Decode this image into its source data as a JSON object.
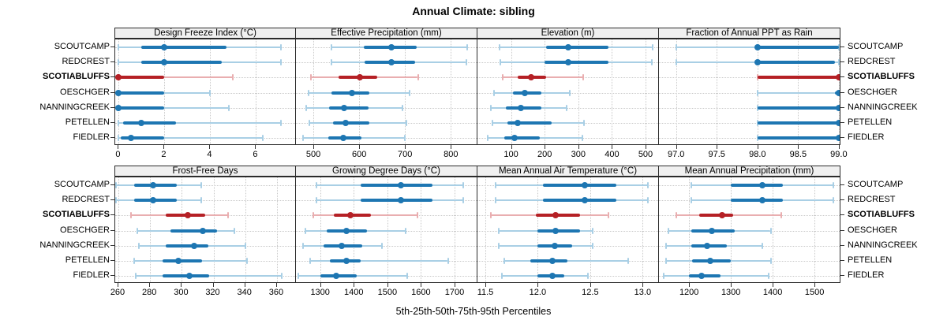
{
  "title": "Annual Climate: sibling",
  "caption": "5th-25th-50th-75th-95th Percentiles",
  "sites": [
    "SCOUTCAMP",
    "REDCREST",
    "SCOTIABLUFFS",
    "OESCHGER",
    "NANNINGCREEK",
    "PETELLEN",
    "FIEDLER"
  ],
  "highlight_site": "SCOTIABLUFFS",
  "colors": {
    "blue_dark": "#1d76b2",
    "blue_light": "#a9cfe5",
    "red_dark": "#b52025",
    "red_light": "#e9aeb0",
    "grid": "#c9c9c9",
    "strip_bg": "#f0f0f0",
    "border": "#2b2b2b"
  },
  "chart_data": [
    {
      "type": "dotplot-intervals",
      "title": "Design Freeze Index (°C)",
      "slug": "design-freeze-index",
      "xlim": [
        -0.15,
        7.78
      ],
      "ticks": [
        0,
        2,
        4,
        6
      ],
      "tick_labels": [
        "0",
        "2",
        "4",
        "6"
      ],
      "percentiles": [
        "5th",
        "25th",
        "50th",
        "75th",
        "95th"
      ],
      "series": [
        {
          "name": "SCOUTCAMP",
          "values": [
            0,
            1,
            2,
            4.7,
            7.1
          ]
        },
        {
          "name": "REDCREST",
          "values": [
            0,
            1,
            2,
            4.5,
            7.1
          ]
        },
        {
          "name": "SCOTIABLUFFS",
          "values": [
            0,
            0,
            0,
            2,
            5
          ]
        },
        {
          "name": "OESCHGER",
          "values": [
            0,
            0,
            0,
            2,
            4
          ]
        },
        {
          "name": "NANNINGCREEK",
          "values": [
            0,
            0,
            0,
            2,
            4.8
          ]
        },
        {
          "name": "PETELLEN",
          "values": [
            0,
            0.2,
            1,
            2.5,
            7.1
          ]
        },
        {
          "name": "FIEDLER",
          "values": [
            0,
            0.1,
            0.55,
            2,
            6.3
          ]
        }
      ]
    },
    {
      "type": "dotplot-intervals",
      "title": "Effective Precipitation (mm)",
      "slug": "effective-precipitation",
      "xlim": [
        462,
        858
      ],
      "ticks": [
        500,
        600,
        700,
        800
      ],
      "tick_labels": [
        "500",
        "600",
        "700",
        "800"
      ],
      "percentiles": [
        "5th",
        "25th",
        "50th",
        "75th",
        "95th"
      ],
      "series": [
        {
          "name": "SCOUTCAMP",
          "values": [
            540,
            610,
            670,
            725,
            835
          ]
        },
        {
          "name": "REDCREST",
          "values": [
            540,
            612,
            670,
            722,
            833
          ]
        },
        {
          "name": "SCOTIABLUFFS",
          "values": [
            495,
            555,
            602,
            640,
            728
          ]
        },
        {
          "name": "OESCHGER",
          "values": [
            490,
            540,
            585,
            622,
            710
          ]
        },
        {
          "name": "NANNINGCREEK",
          "values": [
            485,
            535,
            567,
            620,
            695
          ]
        },
        {
          "name": "PETELLEN",
          "values": [
            492,
            542,
            570,
            622,
            703
          ]
        },
        {
          "name": "FIEDLER",
          "values": [
            478,
            532,
            565,
            605,
            700
          ]
        }
      ]
    },
    {
      "type": "dotplot-intervals",
      "title": "Elevation (m)",
      "slug": "elevation",
      "xlim": [
        0,
        540
      ],
      "ticks": [
        100,
        200,
        300,
        400,
        500
      ],
      "tick_labels": [
        "100",
        "200",
        "300",
        "400",
        "500"
      ],
      "percentiles": [
        "5th",
        "25th",
        "50th",
        "75th",
        "95th"
      ],
      "series": [
        {
          "name": "SCOUTCAMP",
          "values": [
            65,
            205,
            270,
            390,
            520
          ]
        },
        {
          "name": "REDCREST",
          "values": [
            68,
            200,
            270,
            390,
            518
          ]
        },
        {
          "name": "SCOTIABLUFFS",
          "values": [
            75,
            120,
            160,
            205,
            315
          ]
        },
        {
          "name": "OESCHGER",
          "values": [
            50,
            105,
            140,
            190,
            275
          ]
        },
        {
          "name": "NANNINGCREEK",
          "values": [
            40,
            85,
            128,
            190,
            265
          ]
        },
        {
          "name": "PETELLEN",
          "values": [
            45,
            90,
            120,
            220,
            318
          ]
        },
        {
          "name": "FIEDLER",
          "values": [
            30,
            80,
            110,
            185,
            312
          ]
        }
      ]
    },
    {
      "type": "dotplot-intervals",
      "title": "Fraction of Annual PPT as Rain",
      "slug": "fraction-annual-ppt-rain",
      "xlim": [
        96.79,
        99.02
      ],
      "ticks": [
        97.0,
        97.5,
        98.0,
        98.5,
        99.0
      ],
      "tick_labels": [
        "97.0",
        "97.5",
        "98.0",
        "98.5",
        "99.0"
      ],
      "percentiles": [
        "5th",
        "25th",
        "50th",
        "75th",
        "95th"
      ],
      "series": [
        {
          "name": "SCOUTCAMP",
          "values": [
            97.0,
            98.0,
            98.0,
            99.0,
            99.0
          ]
        },
        {
          "name": "REDCREST",
          "values": [
            97.0,
            98.0,
            98.0,
            98.95,
            99.0
          ]
        },
        {
          "name": "SCOTIABLUFFS",
          "values": [
            98.0,
            98.0,
            99.0,
            99.0,
            99.0
          ]
        },
        {
          "name": "OESCHGER",
          "values": [
            98.0,
            98.95,
            99.0,
            99.0,
            99.0
          ]
        },
        {
          "name": "NANNINGCREEK",
          "values": [
            98.0,
            98.0,
            99.0,
            99.0,
            99.0
          ]
        },
        {
          "name": "PETELLEN",
          "values": [
            98.0,
            98.0,
            99.0,
            99.0,
            99.0
          ]
        },
        {
          "name": "FIEDLER",
          "values": [
            98.0,
            98.0,
            99.0,
            99.0,
            99.0
          ]
        }
      ]
    },
    {
      "type": "dotplot-intervals",
      "title": "Frost-Free Days",
      "slug": "frost-free-days",
      "xlim": [
        258,
        372.5
      ],
      "ticks": [
        260,
        280,
        300,
        320,
        340,
        360
      ],
      "tick_labels": [
        "260",
        "280",
        "300",
        "320",
        "340",
        "360"
      ],
      "percentiles": [
        "5th",
        "25th",
        "50th",
        "75th",
        "95th"
      ],
      "series": [
        {
          "name": "SCOUTCAMP",
          "values": [
            258.5,
            270,
            282,
            297,
            312
          ]
        },
        {
          "name": "REDCREST",
          "values": [
            258.5,
            270,
            282,
            297,
            312
          ]
        },
        {
          "name": "SCOTIABLUFFS",
          "values": [
            268,
            290,
            304,
            315,
            329
          ]
        },
        {
          "name": "OESCHGER",
          "values": [
            272,
            293,
            313,
            322,
            333
          ]
        },
        {
          "name": "NANNINGCREEK",
          "values": [
            273,
            290,
            308,
            317,
            340
          ]
        },
        {
          "name": "PETELLEN",
          "values": [
            270,
            288,
            298,
            313,
            341
          ]
        },
        {
          "name": "FIEDLER",
          "values": [
            271,
            288,
            305,
            317,
            363
          ]
        }
      ]
    },
    {
      "type": "dotplot-intervals",
      "title": "Growing Degree Days (°C)",
      "slug": "growing-degree-days",
      "xlim": [
        1228,
        1768
      ],
      "ticks": [
        1300,
        1400,
        1500,
        1600,
        1700
      ],
      "tick_labels": [
        "1300",
        "1400",
        "1500",
        "1600",
        "1700"
      ],
      "percentiles": [
        "5th",
        "25th",
        "50th",
        "75th",
        "95th"
      ],
      "series": [
        {
          "name": "SCOUTCAMP",
          "values": [
            1290,
            1420,
            1540,
            1635,
            1725
          ]
        },
        {
          "name": "REDCREST",
          "values": [
            1290,
            1420,
            1540,
            1635,
            1725
          ]
        },
        {
          "name": "SCOTIABLUFFS",
          "values": [
            1280,
            1340,
            1390,
            1450,
            1590
          ]
        },
        {
          "name": "OESCHGER",
          "values": [
            1255,
            1320,
            1378,
            1440,
            1555
          ]
        },
        {
          "name": "NANNINGCREEK",
          "values": [
            1248,
            1310,
            1365,
            1425,
            1483
          ]
        },
        {
          "name": "PETELLEN",
          "values": [
            1270,
            1330,
            1378,
            1420,
            1680
          ]
        },
        {
          "name": "FIEDLER",
          "values": [
            1235,
            1300,
            1348,
            1408,
            1560
          ]
        }
      ]
    },
    {
      "type": "dotplot-intervals",
      "title": "Mean Annual Air Temperature (°C)",
      "slug": "mean-annual-air-temperature",
      "xlim": [
        11.425,
        13.155
      ],
      "ticks": [
        11.5,
        12.0,
        12.5,
        13.0
      ],
      "tick_labels": [
        "11.5",
        "12.0",
        "12.5",
        "13.0"
      ],
      "percentiles": [
        "5th",
        "25th",
        "50th",
        "75th",
        "95th"
      ],
      "series": [
        {
          "name": "SCOUTCAMP",
          "values": [
            11.6,
            12.05,
            12.45,
            12.75,
            13.05
          ]
        },
        {
          "name": "REDCREST",
          "values": [
            11.6,
            12.05,
            12.45,
            12.75,
            13.05
          ]
        },
        {
          "name": "SCOTIABLUFFS",
          "values": [
            11.55,
            11.98,
            12.17,
            12.4,
            12.67
          ]
        },
        {
          "name": "OESCHGER",
          "values": [
            11.63,
            12.0,
            12.17,
            12.4,
            12.52
          ]
        },
        {
          "name": "NANNINGCREEK",
          "values": [
            11.63,
            12.0,
            12.16,
            12.33,
            12.52
          ]
        },
        {
          "name": "PETELLEN",
          "values": [
            11.68,
            11.93,
            12.14,
            12.28,
            12.86
          ]
        },
        {
          "name": "FIEDLER",
          "values": [
            11.66,
            12.0,
            12.14,
            12.25,
            12.48
          ]
        }
      ]
    },
    {
      "type": "dotplot-intervals",
      "title": "Mean Annual Precipitation (mm)",
      "slug": "mean-annual-precipitation",
      "xlim": [
        1128,
        1562
      ],
      "ticks": [
        1200,
        1300,
        1400,
        1500
      ],
      "tick_labels": [
        "1200",
        "1300",
        "1400",
        "1500"
      ],
      "percentiles": [
        "5th",
        "25th",
        "50th",
        "75th",
        "95th"
      ],
      "series": [
        {
          "name": "SCOUTCAMP",
          "values": [
            1205,
            1300,
            1375,
            1425,
            1545
          ]
        },
        {
          "name": "REDCREST",
          "values": [
            1205,
            1300,
            1375,
            1425,
            1545
          ]
        },
        {
          "name": "SCOTIABLUFFS",
          "values": [
            1170,
            1225,
            1278,
            1305,
            1420
          ]
        },
        {
          "name": "OESCHGER",
          "values": [
            1150,
            1205,
            1255,
            1310,
            1395
          ]
        },
        {
          "name": "NANNINGCREEK",
          "values": [
            1145,
            1205,
            1243,
            1290,
            1375
          ]
        },
        {
          "name": "PETELLEN",
          "values": [
            1145,
            1208,
            1250,
            1300,
            1395
          ]
        },
        {
          "name": "FIEDLER",
          "values": [
            1140,
            1200,
            1230,
            1275,
            1390
          ]
        }
      ]
    }
  ]
}
